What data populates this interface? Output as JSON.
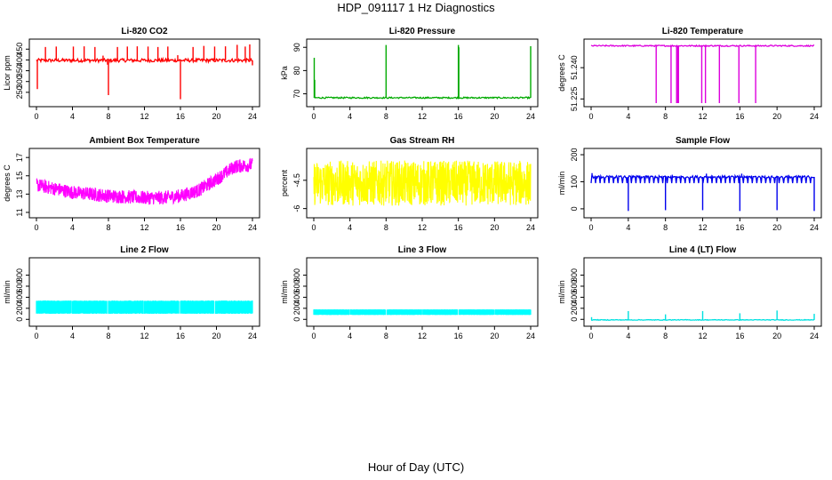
{
  "figure": {
    "title": "HDP_091117  1 Hz Diagnostics",
    "xlabel": "Hour of Day (UTC)"
  },
  "chart_data": [
    {
      "type": "line",
      "title": "Li-820 CO2",
      "ylabel": "Licor ppm",
      "color": "#ff0000",
      "xlim": [
        0,
        24
      ],
      "xticks": [
        0,
        4,
        8,
        12,
        16,
        20,
        24
      ],
      "ylim": [
        200,
        480
      ],
      "yticks": [
        250,
        300,
        350,
        400,
        450
      ],
      "baseline": 398,
      "noise": 8,
      "spikes": [
        {
          "x": 0.1,
          "y": 265
        },
        {
          "x": 1.0,
          "y": 460
        },
        {
          "x": 2.2,
          "y": 462
        },
        {
          "x": 4.1,
          "y": 462
        },
        {
          "x": 5.3,
          "y": 463
        },
        {
          "x": 6.5,
          "y": 460
        },
        {
          "x": 7.4,
          "y": 420
        },
        {
          "x": 7.9,
          "y": 378
        },
        {
          "x": 8.0,
          "y": 237
        },
        {
          "x": 9.0,
          "y": 460
        },
        {
          "x": 10.1,
          "y": 462
        },
        {
          "x": 11.2,
          "y": 463
        },
        {
          "x": 12.4,
          "y": 462
        },
        {
          "x": 13.5,
          "y": 460
        },
        {
          "x": 14.6,
          "y": 462
        },
        {
          "x": 15.7,
          "y": 422
        },
        {
          "x": 16.0,
          "y": 218
        },
        {
          "x": 17.4,
          "y": 460
        },
        {
          "x": 18.6,
          "y": 465
        },
        {
          "x": 19.8,
          "y": 462
        },
        {
          "x": 21.0,
          "y": 463
        },
        {
          "x": 22.3,
          "y": 470
        },
        {
          "x": 23.2,
          "y": 462
        },
        {
          "x": 23.7,
          "y": 472
        },
        {
          "x": 24.0,
          "y": 375
        }
      ]
    },
    {
      "type": "line",
      "title": "Li-820 Pressure",
      "ylabel": "kPa",
      "color": "#00aa00",
      "xlim": [
        0,
        24
      ],
      "xticks": [
        0,
        4,
        8,
        12,
        16,
        20,
        24
      ],
      "ylim": [
        66,
        92
      ],
      "yticks": [
        70,
        80,
        90
      ],
      "baseline": 68.3,
      "noise": 0.3,
      "spikes": [
        {
          "x": 0.05,
          "y": 85.5
        },
        {
          "x": 0.1,
          "y": 76
        },
        {
          "x": 8.0,
          "y": 91
        },
        {
          "x": 16.0,
          "y": 91
        },
        {
          "x": 16.05,
          "y": 90
        },
        {
          "x": 24.0,
          "y": 90.5
        }
      ]
    },
    {
      "type": "line",
      "title": "Li-820 Temperature",
      "ylabel": "degrees C",
      "color": "#dd00dd",
      "xlim": [
        0,
        24
      ],
      "xticks": [
        0,
        4,
        8,
        12,
        16,
        20,
        24
      ],
      "ylim": [
        51.223,
        51.252
      ],
      "yticks": [
        51.225,
        51.24
      ],
      "baseline": 51.2505,
      "noise": 0.0003,
      "spikes": [
        {
          "x": 7.0,
          "y": 51.223
        },
        {
          "x": 8.6,
          "y": 51.223
        },
        {
          "x": 9.2,
          "y": 51.223
        },
        {
          "x": 9.3,
          "y": 51.223
        },
        {
          "x": 9.4,
          "y": 51.223
        },
        {
          "x": 11.9,
          "y": 51.223
        },
        {
          "x": 12.3,
          "y": 51.223
        },
        {
          "x": 13.8,
          "y": 51.223
        },
        {
          "x": 15.9,
          "y": 51.223
        },
        {
          "x": 17.7,
          "y": 51.223
        }
      ]
    },
    {
      "type": "line",
      "title": "Ambient Box Temperature",
      "ylabel": "degrees C",
      "color": "#ff00ff",
      "xlim": [
        0,
        24
      ],
      "xticks": [
        0,
        4,
        8,
        12,
        16,
        20,
        24
      ],
      "ylim": [
        10.8,
        17.6
      ],
      "yticks": [
        11,
        13,
        15,
        17
      ],
      "curve": [
        [
          0,
          14.0
        ],
        [
          2,
          13.6
        ],
        [
          4,
          13.2
        ],
        [
          6,
          13.0
        ],
        [
          8,
          12.8
        ],
        [
          10,
          12.7
        ],
        [
          12,
          12.6
        ],
        [
          14,
          12.6
        ],
        [
          16,
          12.8
        ],
        [
          18,
          13.4
        ],
        [
          20,
          14.6
        ],
        [
          22,
          16.0
        ],
        [
          24,
          16.2
        ]
      ],
      "noise": 0.75,
      "spikes": []
    },
    {
      "type": "line",
      "title": "Gas Stream RH",
      "ylabel": "percent",
      "color": "#ffff00",
      "xlim": [
        0,
        24
      ],
      "xticks": [
        0,
        4,
        8,
        12,
        16,
        20,
        24
      ],
      "ylim": [
        -6.3,
        -3.0
      ],
      "yticks": [
        -6.0,
        -4.5
      ],
      "baseline": -4.65,
      "noise": 1.2,
      "spikes": []
    },
    {
      "type": "line",
      "title": "Sample Flow",
      "ylabel": "ml/min",
      "color": "#0000ee",
      "xlim": [
        0,
        24
      ],
      "xticks": [
        0,
        4,
        8,
        12,
        16,
        20,
        24
      ],
      "ylim": [
        -20,
        210
      ],
      "yticks": [
        0,
        100,
        200
      ],
      "baseline": 118,
      "noise": 4,
      "dips_every": 0.5,
      "dip_value": 95,
      "spikes": [
        {
          "x": 0.1,
          "y": 132
        },
        {
          "x": 4.0,
          "y": -8
        },
        {
          "x": 8.0,
          "y": -5
        },
        {
          "x": 12.0,
          "y": -5
        },
        {
          "x": 16.0,
          "y": -8
        },
        {
          "x": 20.0,
          "y": -5
        },
        {
          "x": 24.0,
          "y": -8
        },
        {
          "x": 12.4,
          "y": 130
        },
        {
          "x": 16.2,
          "y": 130
        }
      ]
    },
    {
      "type": "area",
      "title": "Line 2 Flow",
      "ylabel": "ml/min",
      "color": "#00ffff",
      "xlim": [
        0,
        24
      ],
      "xticks": [
        0,
        4,
        8,
        12,
        16,
        20,
        24
      ],
      "ylim": [
        -60,
        1050
      ],
      "yticks": [
        0,
        200,
        400,
        600,
        800
      ],
      "band_low": 100,
      "band_high": 340,
      "gaps": [
        3.9,
        7.9,
        11.9,
        15.9,
        19.8
      ],
      "spikes": []
    },
    {
      "type": "area",
      "title": "Line 3 Flow",
      "ylabel": "ml/min",
      "color": "#00ffff",
      "xlim": [
        0,
        24
      ],
      "xticks": [
        0,
        4,
        8,
        12,
        16,
        20,
        24
      ],
      "ylim": [
        -60,
        1050
      ],
      "yticks": [
        0,
        200,
        400,
        600,
        800
      ],
      "band_low": 80,
      "band_high": 180,
      "gaps": [
        4.0,
        8.0,
        12.0,
        16.0,
        20.0
      ],
      "spikes": []
    },
    {
      "type": "line",
      "title": "Line 4 (LT) Flow",
      "ylabel": "ml/min",
      "color": "#00e0e0",
      "xlim": [
        0,
        24
      ],
      "xticks": [
        0,
        4,
        8,
        12,
        16,
        20,
        24
      ],
      "ylim": [
        -60,
        1050
      ],
      "yticks": [
        0,
        200,
        400,
        600,
        800
      ],
      "baseline": -10,
      "noise": 6,
      "spikes": [
        {
          "x": 0.05,
          "y": 40
        },
        {
          "x": 4.0,
          "y": 150
        },
        {
          "x": 8.0,
          "y": 90
        },
        {
          "x": 12.0,
          "y": 150
        },
        {
          "x": 16.0,
          "y": 110
        },
        {
          "x": 20.0,
          "y": 160
        },
        {
          "x": 24.0,
          "y": 100
        }
      ]
    }
  ]
}
